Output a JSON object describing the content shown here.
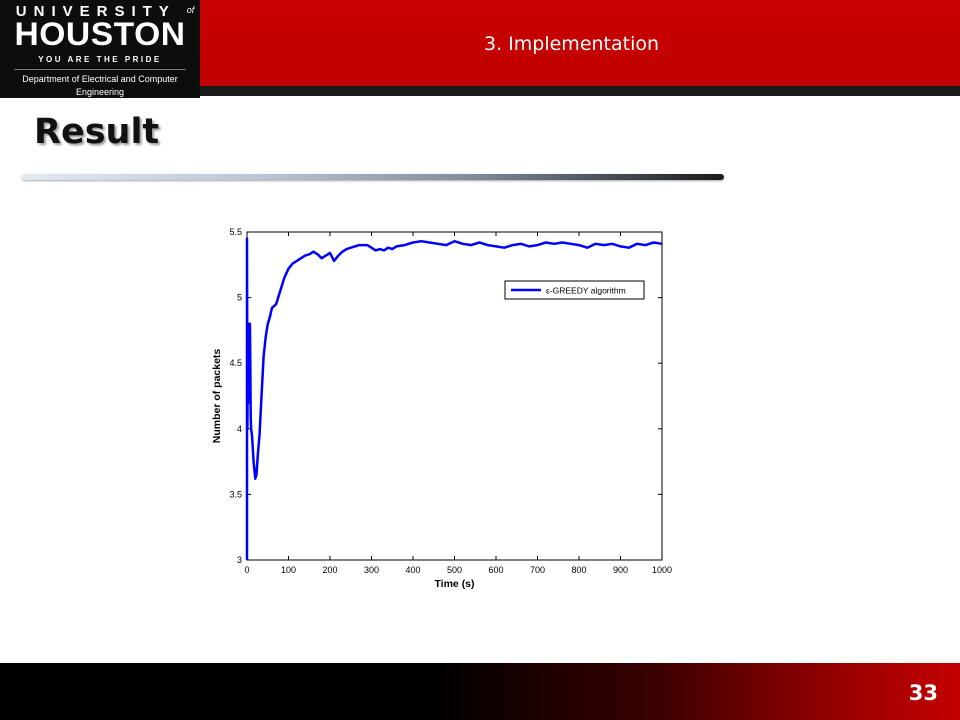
{
  "header": {
    "logo": {
      "line1": "UNIVERSITY",
      "line1_of": "of",
      "line2": "HOUSTON",
      "line3": "YOU ARE THE PRIDE"
    },
    "department": "Department of Electrical and Computer Engineering",
    "section": "3. Implementation"
  },
  "slide": {
    "title": "Result",
    "page_number": "33"
  },
  "colors": {
    "brand_red": "#c80000",
    "series_blue": "#0000ff",
    "dark": "#0d0d0d"
  },
  "chart_data": {
    "type": "line",
    "title": "",
    "xlabel": "Time (s)",
    "ylabel": "Number of packets",
    "xlim": [
      0,
      1000
    ],
    "ylim": [
      3,
      5.5
    ],
    "x_ticks": [
      "0",
      "100",
      "200",
      "300",
      "400",
      "500",
      "600",
      "700",
      "800",
      "900",
      "1000"
    ],
    "y_ticks": [
      "3",
      "3.5",
      "4",
      "4.5",
      "5",
      "5.5"
    ],
    "grid": false,
    "legend_position": "upper-right",
    "series": [
      {
        "name": "ε-GREEDY algorithm",
        "color": "#0000ff",
        "points": [
          [
            0,
            3.0
          ],
          [
            0,
            5.45
          ],
          [
            1,
            4.0
          ],
          [
            2,
            4.75
          ],
          [
            3,
            4.2
          ],
          [
            4,
            4.8
          ],
          [
            5,
            4.3
          ],
          [
            6,
            4.2
          ],
          [
            7,
            4.8
          ],
          [
            8,
            4.5
          ],
          [
            9,
            4.1
          ],
          [
            10,
            4.0
          ],
          [
            12,
            3.95
          ],
          [
            14,
            3.85
          ],
          [
            16,
            3.75
          ],
          [
            18,
            3.68
          ],
          [
            20,
            3.62
          ],
          [
            23,
            3.65
          ],
          [
            26,
            3.8
          ],
          [
            30,
            3.95
          ],
          [
            35,
            4.25
          ],
          [
            40,
            4.55
          ],
          [
            45,
            4.7
          ],
          [
            50,
            4.8
          ],
          [
            55,
            4.85
          ],
          [
            60,
            4.92
          ],
          [
            70,
            4.95
          ],
          [
            80,
            5.05
          ],
          [
            90,
            5.15
          ],
          [
            100,
            5.22
          ],
          [
            110,
            5.26
          ],
          [
            120,
            5.28
          ],
          [
            130,
            5.3
          ],
          [
            140,
            5.32
          ],
          [
            150,
            5.33
          ],
          [
            160,
            5.35
          ],
          [
            170,
            5.33
          ],
          [
            180,
            5.3
          ],
          [
            190,
            5.32
          ],
          [
            200,
            5.34
          ],
          [
            210,
            5.28
          ],
          [
            220,
            5.32
          ],
          [
            230,
            5.35
          ],
          [
            240,
            5.37
          ],
          [
            250,
            5.38
          ],
          [
            260,
            5.39
          ],
          [
            270,
            5.4
          ],
          [
            280,
            5.4
          ],
          [
            290,
            5.4
          ],
          [
            300,
            5.38
          ],
          [
            310,
            5.36
          ],
          [
            320,
            5.37
          ],
          [
            330,
            5.36
          ],
          [
            340,
            5.38
          ],
          [
            350,
            5.37
          ],
          [
            360,
            5.39
          ],
          [
            380,
            5.4
          ],
          [
            400,
            5.42
          ],
          [
            420,
            5.43
          ],
          [
            440,
            5.42
          ],
          [
            460,
            5.41
          ],
          [
            480,
            5.4
          ],
          [
            500,
            5.43
          ],
          [
            520,
            5.41
          ],
          [
            540,
            5.4
          ],
          [
            560,
            5.42
          ],
          [
            580,
            5.4
          ],
          [
            600,
            5.39
          ],
          [
            620,
            5.38
          ],
          [
            640,
            5.4
          ],
          [
            660,
            5.41
          ],
          [
            680,
            5.39
          ],
          [
            700,
            5.4
          ],
          [
            720,
            5.42
          ],
          [
            740,
            5.41
          ],
          [
            760,
            5.42
          ],
          [
            780,
            5.41
          ],
          [
            800,
            5.4
          ],
          [
            820,
            5.38
          ],
          [
            840,
            5.41
          ],
          [
            860,
            5.4
          ],
          [
            880,
            5.41
          ],
          [
            900,
            5.39
          ],
          [
            920,
            5.38
          ],
          [
            940,
            5.41
          ],
          [
            960,
            5.4
          ],
          [
            980,
            5.42
          ],
          [
            1000,
            5.41
          ]
        ]
      }
    ]
  }
}
